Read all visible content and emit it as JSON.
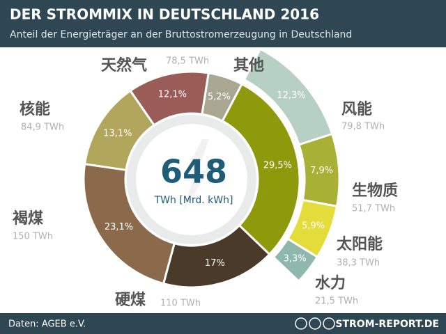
{
  "chart_data": {
    "type": "donut",
    "title": "DER STROMMIX IN DEUTSCHLAND 2016",
    "subtitle": "Anteil der Energieträger an der Bruttostromerzeugung in Deutschland",
    "center_value": 648,
    "center_label": "TWh [Mrd. kWh]",
    "source": "Daten: AGEB e.V.",
    "brand": "STROM-REPORT.DE",
    "inner": {
      "categories": [
        "其他",
        null,
        "硬煤",
        "褐煤",
        "核能",
        "天然气"
      ],
      "values": [
        5.2,
        29.5,
        17,
        23.1,
        13.1,
        12.1
      ],
      "value_labels": [
        "5,2%",
        "29,5%",
        "17%",
        "23,1%",
        "13,1%",
        "12,1%"
      ],
      "twh": [
        null,
        null,
        110,
        150,
        84.9,
        78.5
      ],
      "twh_labels": [
        null,
        null,
        "110 TWh",
        "150 TWh",
        "84,9 TWh",
        "78,5 TWh"
      ],
      "colors": [
        "#a9a692",
        "#8e9a0b",
        "#4a3a29",
        "#8a6a4b",
        "#b2a55c",
        "#9a5c57"
      ]
    },
    "outer": {
      "categories": [
        "风能",
        "生物质",
        "太阳能",
        "水力"
      ],
      "values": [
        12.3,
        7.9,
        5.9,
        3.3
      ],
      "value_labels": [
        "12,3%",
        "7,9%",
        "5,9%",
        "3,3%"
      ],
      "twh": [
        79.8,
        51.7,
        38.3,
        21.5
      ],
      "twh_labels": [
        "79,8 TWh",
        "51,7 TWh",
        "38,3 TWh",
        "21,5 TWh"
      ],
      "colors": [
        "#b7d0c4",
        "#a8b136",
        "#e4dc3a",
        "#8fb8ac"
      ]
    }
  }
}
